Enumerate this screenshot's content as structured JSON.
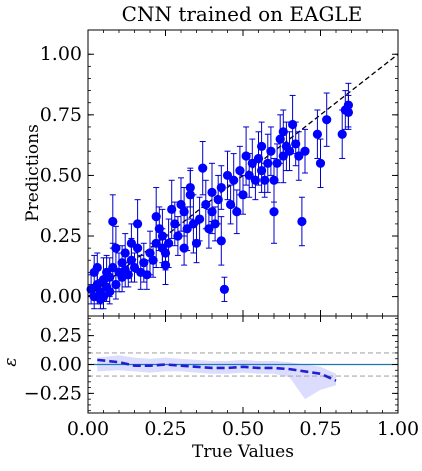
{
  "chart_data": [
    {
      "type": "scatter",
      "title": "CNN trained on EAGLE",
      "xlabel": "True Values",
      "ylabel": "Predictions",
      "xlim": [
        0,
        1
      ],
      "ylim": [
        -0.08,
        1.1
      ],
      "xticks": [
        "0.00",
        "0.25",
        "0.50",
        "0.75",
        "1.00"
      ],
      "yticks": [
        "0.00",
        "0.25",
        "0.50",
        "0.75",
        "1.00"
      ],
      "grid": false,
      "colors": {
        "points": "#0000ff",
        "errorbars": "#0000cc",
        "reference_line": "#000000"
      },
      "reference_line": {
        "style": "dashed",
        "from": [
          0,
          0
        ],
        "to": [
          1,
          1
        ]
      },
      "points": [
        {
          "x": 0.01,
          "y": 0.03,
          "e": 0.06
        },
        {
          "x": 0.02,
          "y": 0.1,
          "e": 0.07
        },
        {
          "x": 0.02,
          "y": 0.0,
          "e": 0.05
        },
        {
          "x": 0.03,
          "y": 0.05,
          "e": 0.08
        },
        {
          "x": 0.03,
          "y": 0.12,
          "e": 0.06
        },
        {
          "x": 0.04,
          "y": 0.02,
          "e": 0.05
        },
        {
          "x": 0.04,
          "y": -0.01,
          "e": 0.04
        },
        {
          "x": 0.05,
          "y": 0.07,
          "e": 0.09
        },
        {
          "x": 0.05,
          "y": 0.0,
          "e": 0.05
        },
        {
          "x": 0.06,
          "y": 0.1,
          "e": 0.07
        },
        {
          "x": 0.06,
          "y": 0.04,
          "e": 0.06
        },
        {
          "x": 0.07,
          "y": 0.02,
          "e": 0.05
        },
        {
          "x": 0.07,
          "y": 0.08,
          "e": 0.08
        },
        {
          "x": 0.08,
          "y": 0.12,
          "e": 0.1
        },
        {
          "x": 0.08,
          "y": 0.31,
          "e": 0.11
        },
        {
          "x": 0.09,
          "y": 0.05,
          "e": 0.06
        },
        {
          "x": 0.09,
          "y": 0.2,
          "e": 0.09
        },
        {
          "x": 0.1,
          "y": 0.1,
          "e": 0.08
        },
        {
          "x": 0.11,
          "y": 0.14,
          "e": 0.07
        },
        {
          "x": 0.11,
          "y": 0.08,
          "e": 0.06
        },
        {
          "x": 0.12,
          "y": 0.18,
          "e": 0.08
        },
        {
          "x": 0.12,
          "y": 0.11,
          "e": 0.07
        },
        {
          "x": 0.13,
          "y": 0.09,
          "e": 0.05
        },
        {
          "x": 0.14,
          "y": 0.15,
          "e": 0.09
        },
        {
          "x": 0.14,
          "y": 0.22,
          "e": 0.08
        },
        {
          "x": 0.15,
          "y": 0.12,
          "e": 0.06
        },
        {
          "x": 0.16,
          "y": 0.2,
          "e": 0.1
        },
        {
          "x": 0.16,
          "y": 0.3,
          "e": 0.1
        },
        {
          "x": 0.17,
          "y": 0.1,
          "e": 0.07
        },
        {
          "x": 0.18,
          "y": 0.14,
          "e": 0.08
        },
        {
          "x": 0.19,
          "y": 0.09,
          "e": 0.06
        },
        {
          "x": 0.2,
          "y": 0.18,
          "e": 0.09
        },
        {
          "x": 0.21,
          "y": 0.15,
          "e": 0.07
        },
        {
          "x": 0.22,
          "y": 0.22,
          "e": 0.1
        },
        {
          "x": 0.22,
          "y": 0.33,
          "e": 0.12
        },
        {
          "x": 0.23,
          "y": 0.28,
          "e": 0.09
        },
        {
          "x": 0.24,
          "y": 0.2,
          "e": 0.08
        },
        {
          "x": 0.24,
          "y": 0.25,
          "e": 0.11
        },
        {
          "x": 0.25,
          "y": 0.13,
          "e": 0.08
        },
        {
          "x": 0.25,
          "y": 0.18,
          "e": 0.07
        },
        {
          "x": 0.26,
          "y": 0.22,
          "e": 0.1
        },
        {
          "x": 0.27,
          "y": 0.36,
          "e": 0.12
        },
        {
          "x": 0.28,
          "y": 0.3,
          "e": 0.09
        },
        {
          "x": 0.29,
          "y": 0.25,
          "e": 0.08
        },
        {
          "x": 0.3,
          "y": 0.38,
          "e": 0.11
        },
        {
          "x": 0.31,
          "y": 0.2,
          "e": 0.07
        },
        {
          "x": 0.31,
          "y": 0.35,
          "e": 0.1
        },
        {
          "x": 0.32,
          "y": 0.28,
          "e": 0.09
        },
        {
          "x": 0.33,
          "y": 0.42,
          "e": 0.1
        },
        {
          "x": 0.33,
          "y": 0.45,
          "e": 0.08
        },
        {
          "x": 0.34,
          "y": 0.3,
          "e": 0.12
        },
        {
          "x": 0.35,
          "y": 0.22,
          "e": 0.08
        },
        {
          "x": 0.36,
          "y": 0.32,
          "e": 0.09
        },
        {
          "x": 0.37,
          "y": 0.53,
          "e": 0.11
        },
        {
          "x": 0.38,
          "y": 0.38,
          "e": 0.1
        },
        {
          "x": 0.39,
          "y": 0.28,
          "e": 0.08
        },
        {
          "x": 0.4,
          "y": 0.35,
          "e": 0.09
        },
        {
          "x": 0.4,
          "y": 0.43,
          "e": 0.12
        },
        {
          "x": 0.41,
          "y": 0.3,
          "e": 0.07
        },
        {
          "x": 0.42,
          "y": 0.4,
          "e": 0.1
        },
        {
          "x": 0.43,
          "y": 0.45,
          "e": 0.09
        },
        {
          "x": 0.43,
          "y": 0.23,
          "e": 0.1
        },
        {
          "x": 0.44,
          "y": 0.03,
          "e": 0.05
        },
        {
          "x": 0.45,
          "y": 0.5,
          "e": 0.1
        },
        {
          "x": 0.46,
          "y": 0.38,
          "e": 0.08
        },
        {
          "x": 0.47,
          "y": 0.48,
          "e": 0.11
        },
        {
          "x": 0.48,
          "y": 0.35,
          "e": 0.09
        },
        {
          "x": 0.49,
          "y": 0.52,
          "e": 0.1
        },
        {
          "x": 0.5,
          "y": 0.42,
          "e": 0.08
        },
        {
          "x": 0.51,
          "y": 0.58,
          "e": 0.12
        },
        {
          "x": 0.52,
          "y": 0.5,
          "e": 0.09
        },
        {
          "x": 0.53,
          "y": 0.55,
          "e": 0.1
        },
        {
          "x": 0.54,
          "y": 0.48,
          "e": 0.08
        },
        {
          "x": 0.55,
          "y": 0.57,
          "e": 0.11
        },
        {
          "x": 0.56,
          "y": 0.62,
          "e": 0.1
        },
        {
          "x": 0.56,
          "y": 0.52,
          "e": 0.09
        },
        {
          "x": 0.57,
          "y": 0.48,
          "e": 0.07
        },
        {
          "x": 0.58,
          "y": 0.55,
          "e": 0.12
        },
        {
          "x": 0.59,
          "y": 0.6,
          "e": 0.1
        },
        {
          "x": 0.6,
          "y": 0.48,
          "e": 0.09
        },
        {
          "x": 0.6,
          "y": 0.35,
          "e": 0.13
        },
        {
          "x": 0.61,
          "y": 0.55,
          "e": 0.08
        },
        {
          "x": 0.62,
          "y": 0.65,
          "e": 0.1
        },
        {
          "x": 0.63,
          "y": 0.58,
          "e": 0.11
        },
        {
          "x": 0.63,
          "y": 0.68,
          "e": 0.09
        },
        {
          "x": 0.64,
          "y": 0.62,
          "e": 0.1
        },
        {
          "x": 0.65,
          "y": 0.6,
          "e": 0.08
        },
        {
          "x": 0.66,
          "y": 0.71,
          "e": 0.12
        },
        {
          "x": 0.67,
          "y": 0.63,
          "e": 0.09
        },
        {
          "x": 0.68,
          "y": 0.58,
          "e": 0.1
        },
        {
          "x": 0.69,
          "y": 0.31,
          "e": 0.1
        },
        {
          "x": 0.7,
          "y": 0.6,
          "e": 0.09
        },
        {
          "x": 0.74,
          "y": 0.67,
          "e": 0.1
        },
        {
          "x": 0.75,
          "y": 0.55,
          "e": 0.1
        },
        {
          "x": 0.77,
          "y": 0.73,
          "e": 0.11
        },
        {
          "x": 0.82,
          "y": 0.67,
          "e": 0.1
        },
        {
          "x": 0.83,
          "y": 0.77,
          "e": 0.08
        },
        {
          "x": 0.84,
          "y": 0.79,
          "e": 0.09
        },
        {
          "x": 0.84,
          "y": 0.76,
          "e": 0.07
        }
      ]
    },
    {
      "type": "line",
      "xlabel": "True Values",
      "ylabel": "ε",
      "xlim": [
        0,
        1
      ],
      "ylim": [
        -0.42,
        0.42
      ],
      "xticks": [
        "0.00",
        "0.25",
        "0.50",
        "0.75",
        "1.00"
      ],
      "yticks": [
        "−0.25",
        "0.00",
        "0.25"
      ],
      "colors": {
        "line": "#1f1fd6",
        "band": "#d8d8ff",
        "zero_line": "#1f77b4",
        "bounds": "#aaaaaa"
      },
      "reference_lines": [
        {
          "y": 0.0,
          "style": "solid"
        },
        {
          "y": 0.1,
          "style": "dashed"
        },
        {
          "y": -0.1,
          "style": "dashed"
        }
      ],
      "series": [
        {
          "x": [
            0.03,
            0.1,
            0.15,
            0.2,
            0.25,
            0.3,
            0.35,
            0.4,
            0.45,
            0.5,
            0.55,
            0.6,
            0.65,
            0.7,
            0.75,
            0.8
          ],
          "values": [
            0.04,
            0.02,
            -0.01,
            -0.01,
            0.0,
            -0.01,
            -0.02,
            -0.03,
            -0.03,
            -0.02,
            -0.03,
            -0.03,
            -0.04,
            -0.06,
            -0.08,
            -0.14
          ],
          "band_low": [
            -0.06,
            -0.05,
            -0.06,
            -0.07,
            -0.06,
            -0.06,
            -0.07,
            -0.08,
            -0.08,
            -0.07,
            -0.08,
            -0.08,
            -0.11,
            -0.3,
            -0.22,
            -0.18
          ],
          "band_high": [
            0.06,
            0.08,
            0.06,
            0.05,
            0.06,
            0.05,
            0.04,
            0.03,
            0.03,
            0.04,
            0.03,
            0.03,
            0.02,
            0.0,
            -0.02,
            -0.08
          ]
        }
      ]
    }
  ]
}
